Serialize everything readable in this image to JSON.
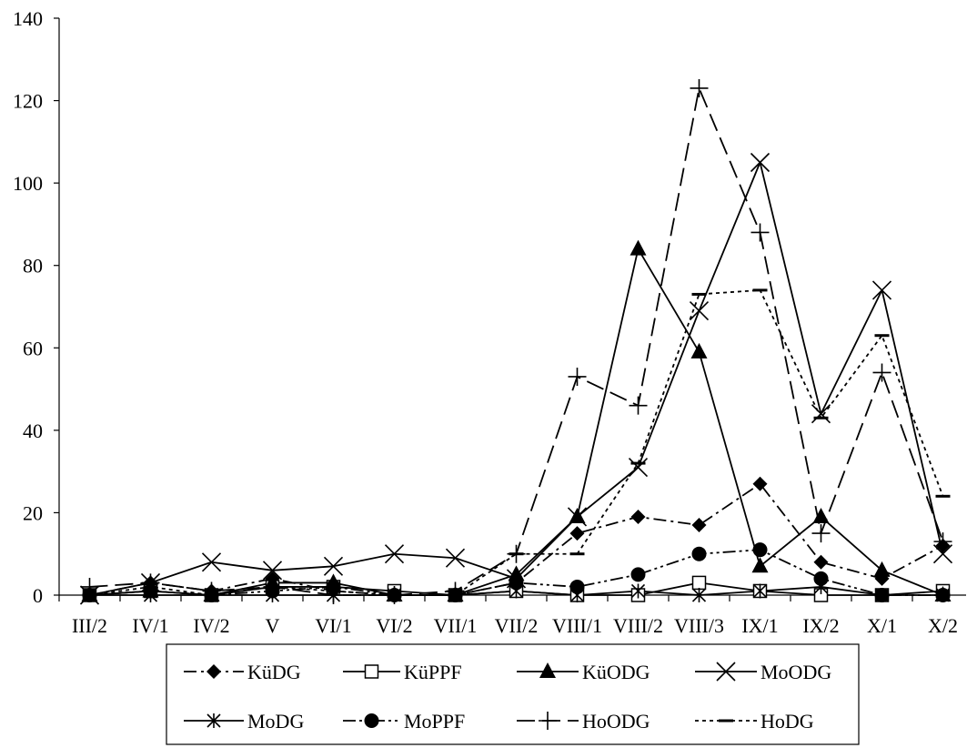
{
  "chart_data": {
    "type": "line",
    "categories": [
      "III/2",
      "IV/1",
      "IV/2",
      "V",
      "VI/1",
      "VI/2",
      "VII/1",
      "VII/2",
      "VIII/1",
      "VIII/2",
      "VIII/3",
      "IX/1",
      "IX/2",
      "X/1",
      "X/2"
    ],
    "ylim": [
      0,
      140
    ],
    "yticks": [
      0,
      20,
      40,
      60,
      80,
      100,
      120,
      140
    ],
    "grid": false,
    "legend": "bottom",
    "series": [
      {
        "name": "KüDG",
        "line": "dash-dot",
        "marker": "diamond",
        "color": "#000000",
        "values": [
          0,
          3,
          1,
          4,
          1,
          0,
          0,
          3,
          15,
          19,
          17,
          27,
          8,
          4,
          12
        ]
      },
      {
        "name": "KüPPF",
        "line": "solid",
        "marker": "square-open",
        "color": "#000000",
        "values": [
          0,
          1,
          0,
          2,
          2,
          1,
          0,
          1,
          0,
          0,
          3,
          1,
          0,
          0,
          1
        ]
      },
      {
        "name": "KüODG",
        "line": "solid",
        "marker": "triangle",
        "color": "#000000",
        "values": [
          0,
          1,
          0,
          3,
          3,
          0,
          0,
          5,
          19,
          84,
          59,
          7,
          19,
          6,
          0
        ]
      },
      {
        "name": "MoODG",
        "line": "solid",
        "marker": "x",
        "color": "#000000",
        "values": [
          0,
          3,
          8,
          6,
          7,
          10,
          9,
          4,
          19,
          31,
          69,
          105,
          44,
          74,
          10
        ]
      },
      {
        "name": "MoDG",
        "line": "solid",
        "marker": "asterisk",
        "color": "#000000",
        "values": [
          0,
          0,
          0,
          0,
          0,
          0,
          0,
          1,
          0,
          1,
          0,
          1,
          2,
          0,
          0
        ]
      },
      {
        "name": "MoPPF",
        "line": "dash-dot-dot",
        "marker": "circle",
        "color": "#000000",
        "values": [
          0,
          1,
          0,
          1,
          2,
          0,
          0,
          3,
          2,
          5,
          10,
          11,
          4,
          0,
          0
        ]
      },
      {
        "name": "HoODG",
        "line": "long-dash",
        "marker": "plus",
        "color": "#000000",
        "values": [
          2,
          3,
          1,
          2,
          0,
          0,
          1,
          10,
          53,
          46,
          123,
          88,
          15,
          54,
          13
        ]
      },
      {
        "name": "HoDG",
        "line": "dotted",
        "marker": "dash",
        "color": "#000000",
        "values": [
          0,
          2,
          0,
          2,
          1,
          0,
          0,
          10,
          10,
          32,
          73,
          74,
          43,
          63,
          24
        ]
      }
    ]
  }
}
